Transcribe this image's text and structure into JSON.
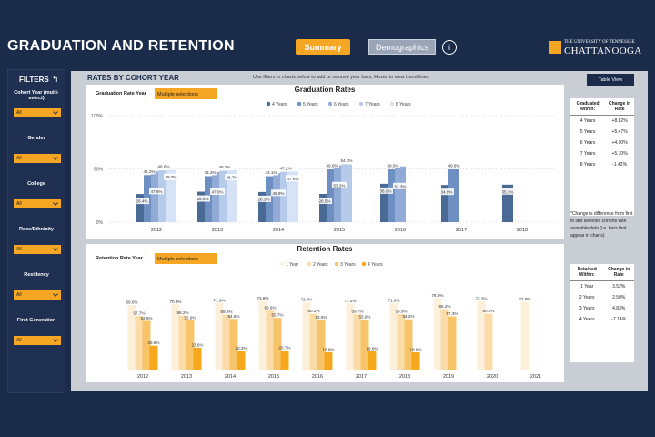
{
  "header": {
    "title": "GRADUATION AND RETENTION",
    "tabs": [
      "Summary",
      "Demographics"
    ],
    "info": "i",
    "logo_top": "THE UNIVERSITY OF TENNESSEE",
    "logo_main": "CHATTANOOGA"
  },
  "sidebar": {
    "title": "FILTERS",
    "filters": [
      {
        "label": "Cohort Year (multi-select)",
        "value": "All"
      },
      {
        "label": "Gender",
        "value": "All"
      },
      {
        "label": "College",
        "value": "All"
      },
      {
        "label": "Race/Ethnicity",
        "value": "All"
      },
      {
        "label": "Residency",
        "value": "All"
      },
      {
        "label": "First Generation",
        "value": "All"
      }
    ]
  },
  "section": {
    "title": "RATES BY COHORT YEAR",
    "hint": "Use filters in charts below to add or remove year bars; Hover to view trend lines",
    "button": "Table View"
  },
  "chart_data": [
    {
      "type": "bar",
      "title": "Graduation Rates",
      "filter_label": "Graduation Rate Year",
      "filter_value": "Multiple selections",
      "categories": [
        "2012",
        "2013",
        "2014",
        "2015",
        "2016",
        "2017",
        "2018"
      ],
      "ylim": [
        0,
        100
      ],
      "yticks": [
        {
          "value": 0,
          "label": "0%"
        },
        {
          "value": 50,
          "label": "50%"
        },
        {
          "value": 100,
          "label": "100%"
        }
      ],
      "grid": true,
      "series": [
        {
          "name": "4 Years",
          "color": "#4a6a96",
          "values": [
            26.4,
            28.6,
            28.3,
            26.5,
            36.0,
            34.9,
            35.2
          ],
          "value_labels": [
            "26.4%",
            "28.6%",
            "28.3%",
            "26.5%",
            "36.0%",
            "34.9%",
            "35.2%"
          ]
        },
        {
          "name": "5 Years",
          "color": "#6e8fc2",
          "values": [
            44.2,
            43.2,
            43.1,
            49.6,
            49.6,
            49.6,
            null
          ],
          "value_labels": [
            "44.2%",
            "43.2%",
            "43.1%",
            "49.6%",
            "49.6%",
            "49.6%",
            null
          ]
        },
        {
          "name": "6 Years",
          "color": "#92abd6",
          "values": [
            47.6,
            47.0,
            45.9,
            53.2,
            52.3,
            null,
            null
          ],
          "value_labels": [
            "47.6%",
            "47.0%",
            "45.9%",
            "53.2%",
            "52.3%",
            null,
            null
          ]
        },
        {
          "name": "7 Years",
          "color": "#b6cae9",
          "values": [
            48.6,
            48.3,
            47.2,
            54.3,
            null,
            null,
            null
          ],
          "value_labels": [
            "48.6%",
            "48.3%",
            "47.2%",
            "54.3%",
            null,
            null,
            null
          ]
        },
        {
          "name": "8 Years",
          "color": "#d6e2f5",
          "values": [
            49.0,
            48.7,
            47.6,
            null,
            null,
            null,
            null
          ],
          "value_labels": [
            "49.0%",
            "48.7%",
            "47.6%",
            null,
            null,
            null,
            null
          ]
        }
      ]
    },
    {
      "type": "bar",
      "title": "Retention Rates",
      "filter_label": "Retention Rate Year",
      "filter_value": "Multiple selections",
      "categories": [
        "2012",
        "2013",
        "2014",
        "2015",
        "2016",
        "2017",
        "2018",
        "2019",
        "2020",
        "2021"
      ],
      "ylim": [
        0,
        100
      ],
      "series": [
        {
          "name": "1 Year",
          "color": "#fdf0da",
          "values": [
            69.6,
            70.3,
            71.6,
            73.8,
            72.7,
            71.2,
            71.6,
            76.8,
            73.3,
            72.9
          ],
          "value_labels": [
            "69.6%",
            "70.3%",
            "71.6%",
            "73.8%",
            "72.7%",
            "71.2%",
            "71.6%",
            "76.8%",
            "73.3%",
            "72.9%"
          ]
        },
        {
          "name": "2 Years",
          "color": "#fbdca8",
          "values": [
            57.7,
            58.2,
            59.2,
            63.6,
            60.2,
            59.7,
            59.9,
            65.2,
            60.2,
            null
          ],
          "value_labels": [
            "57.7%",
            "58.2%",
            "59.2%",
            "63.6%",
            "60.2%",
            "59.7%",
            "59.9%",
            "65.2%",
            "60.2%",
            null
          ]
        },
        {
          "name": "3 Years",
          "color": "#f8c46a",
          "values": [
            52.5,
            52.9,
            54.6,
            55.7,
            53.6,
            53.9,
            54.2,
            57.3,
            null,
            null
          ],
          "value_labels": [
            "52.5%",
            "52.9%",
            "54.6%",
            "55.7%",
            "53.6%",
            "53.9%",
            "54.2%",
            "57.3%",
            null,
            null
          ]
        },
        {
          "name": "4 Years",
          "color": "#f5a81c",
          "values": [
            25.8,
            23.6,
            20.3,
            20.7,
            18.8,
            19.8,
            18.6,
            null,
            null,
            null
          ],
          "value_labels": [
            "25.8%",
            "23.6%",
            "20.3%",
            "20.7%",
            "18.8%",
            "19.8%",
            "18.6%",
            null,
            null,
            null
          ]
        }
      ]
    }
  ],
  "grad_table": {
    "headers": [
      "Graduated within:",
      "Change in Rate"
    ],
    "rows": [
      [
        "4 Years",
        "+8.82%"
      ],
      [
        "5 Years",
        "+5.47%"
      ],
      [
        "6 Years",
        "+4.90%"
      ],
      [
        "7 Years",
        "+5.70%"
      ],
      [
        "8 Years",
        "-1.42%"
      ]
    ],
    "note": "*Change is difference from first to last selected cohorts with available data (i.e. bars that appear in charts)"
  },
  "ret_table": {
    "headers": [
      "Retained Within:",
      "Change in Rate"
    ],
    "rows": [
      [
        "1 Year",
        "3.52%"
      ],
      [
        "2 Years",
        "2.50%"
      ],
      [
        "3 Years",
        "4.83%"
      ],
      [
        "4 Years",
        "-7.14%"
      ]
    ]
  }
}
